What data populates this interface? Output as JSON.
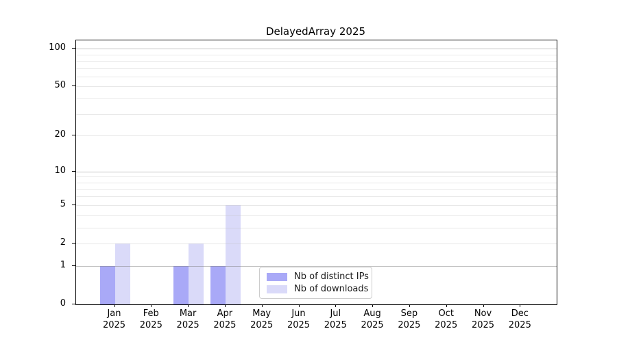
{
  "chart_data": {
    "type": "bar",
    "title": "DelayedArray 2025",
    "categories": [
      "Jan",
      "Feb",
      "Mar",
      "Apr",
      "May",
      "Jun",
      "Jul",
      "Aug",
      "Sep",
      "Oct",
      "Nov",
      "Dec"
    ],
    "x_year_label": "2025",
    "series": [
      {
        "name": "Nb of distinct IPs",
        "color": "#a9a9f7",
        "values": [
          1,
          0,
          1,
          1,
          0,
          0,
          0,
          0,
          0,
          0,
          0,
          0
        ]
      },
      {
        "name": "Nb of downloads",
        "color": "#dadaf9",
        "values": [
          2,
          0,
          2,
          5,
          0,
          0,
          0,
          0,
          0,
          0,
          0,
          0
        ]
      }
    ],
    "y_scale": "log1p",
    "ylim": [
      0,
      116.3
    ],
    "y_tick_labels": [
      0,
      1,
      2,
      5,
      10,
      20,
      50,
      100
    ],
    "y_decade_gridlines": [
      1,
      10,
      100
    ],
    "y_light_gridlines": [
      2,
      3,
      4,
      5,
      6,
      7,
      8,
      9,
      20,
      30,
      40,
      50,
      60,
      70,
      80,
      90
    ],
    "grid": "horizontal",
    "legend_position": "inside-bottom-center",
    "colors": {
      "axis": "#000000",
      "grid_major": "#b7b7b7",
      "grid_minor": "#e9e9e9",
      "legend_border": "#cccccc",
      "background": "#ffffff"
    }
  }
}
